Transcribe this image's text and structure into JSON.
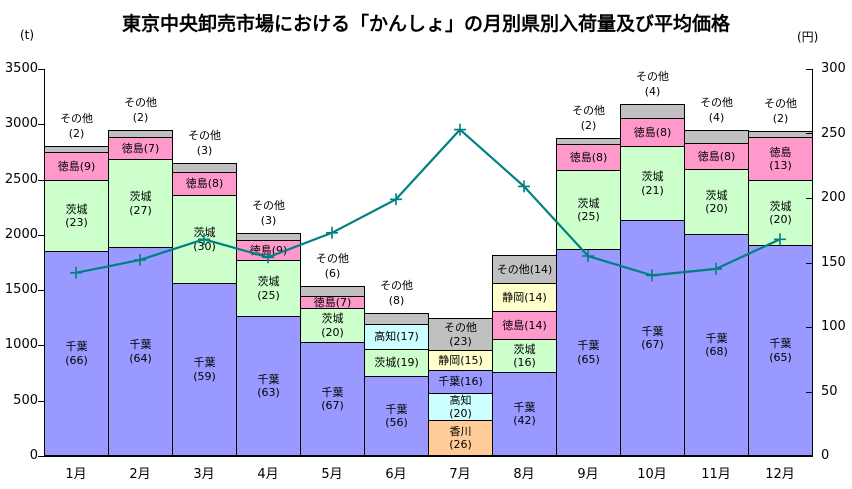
{
  "chart_data": {
    "type": "stacked-bar+line",
    "title": "東京中央卸売市場における「かんしょ」の月別県別入荷量及び平均価格",
    "categories": [
      "1月",
      "2月",
      "3月",
      "4月",
      "5月",
      "6月",
      "7月",
      "8月",
      "9月",
      "10月",
      "11月",
      "12月"
    ],
    "left_axis": {
      "unit": "(t)",
      "min": 0,
      "max": 3500,
      "tick_step": 500,
      "ticks": [
        3500,
        3000,
        2500,
        2000,
        1500,
        1000,
        500,
        0
      ]
    },
    "right_axis": {
      "unit": "(円)",
      "min": 0,
      "max": 300,
      "tick_step": 50,
      "ticks": [
        300,
        250,
        200,
        150,
        100,
        50,
        0
      ]
    },
    "grid": "off",
    "legend": "none",
    "line_series": {
      "name": "平均価格",
      "color": "#008080",
      "marker": "plus",
      "values": [
        142,
        152,
        168,
        154,
        173,
        199,
        253,
        209,
        155,
        140,
        145,
        168
      ]
    },
    "prefecture_colors": {
      "千葉": "#9999FF",
      "茨城": "#CCFFCC",
      "徳島": "#FF99CC",
      "高知": "#CCFFFF",
      "香川": "#FFCC99",
      "静岡": "#FFFFCC",
      "その他": "#C0C0C0"
    },
    "bars": [
      {
        "month": "1月",
        "total_t": 2800,
        "segments": [
          {
            "name": "千葉",
            "pct": 66,
            "lines": 2
          },
          {
            "name": "茨城",
            "pct": 23,
            "lines": 2
          },
          {
            "name": "徳島",
            "pct": 9,
            "lines": 1
          },
          {
            "name": "その他",
            "pct": 2,
            "lines": 2,
            "label_above": true
          }
        ]
      },
      {
        "month": "2月",
        "total_t": 2950,
        "segments": [
          {
            "name": "千葉",
            "pct": 64,
            "lines": 2
          },
          {
            "name": "茨城",
            "pct": 27,
            "lines": 2
          },
          {
            "name": "徳島",
            "pct": 7,
            "lines": 1
          },
          {
            "name": "その他",
            "pct": 2,
            "lines": 2,
            "label_above": true
          }
        ]
      },
      {
        "month": "3月",
        "total_t": 2650,
        "segments": [
          {
            "name": "千葉",
            "pct": 59,
            "lines": 2
          },
          {
            "name": "茨城",
            "pct": 30,
            "lines": 2
          },
          {
            "name": "徳島",
            "pct": 8,
            "lines": 1
          },
          {
            "name": "その他",
            "pct": 3,
            "lines": 2,
            "label_above": true
          }
        ]
      },
      {
        "month": "4月",
        "total_t": 2020,
        "segments": [
          {
            "name": "千葉",
            "pct": 63,
            "lines": 2
          },
          {
            "name": "茨城",
            "pct": 25,
            "lines": 2
          },
          {
            "name": "徳島",
            "pct": 9,
            "lines": 1
          },
          {
            "name": "その他",
            "pct": 3,
            "lines": 2,
            "label_above": true
          }
        ]
      },
      {
        "month": "5月",
        "total_t": 1540,
        "segments": [
          {
            "name": "千葉",
            "pct": 67,
            "lines": 2
          },
          {
            "name": "茨城",
            "pct": 20,
            "lines": 2
          },
          {
            "name": "徳島",
            "pct": 7,
            "lines": 1
          },
          {
            "name": "その他",
            "pct": 6,
            "lines": 2,
            "label_above": true
          }
        ]
      },
      {
        "month": "6月",
        "total_t": 1290,
        "segments": [
          {
            "name": "千葉",
            "pct": 56,
            "lines": 2
          },
          {
            "name": "茨城",
            "pct": 19,
            "lines": 1
          },
          {
            "name": "高知",
            "pct": 17,
            "lines": 1
          },
          {
            "name": "その他",
            "pct": 8,
            "lines": 2,
            "label_above": true
          }
        ]
      },
      {
        "month": "7月",
        "total_t": 1250,
        "segments": [
          {
            "name": "香川",
            "pct": 26,
            "lines": 2
          },
          {
            "name": "高知",
            "pct": 20,
            "lines": 2
          },
          {
            "name": "千葉",
            "pct": 16,
            "lines": 1
          },
          {
            "name": "静岡",
            "pct": 15,
            "lines": 1
          },
          {
            "name": "その他",
            "pct": 23,
            "lines": 2
          }
        ]
      },
      {
        "month": "8月",
        "total_t": 1820,
        "segments": [
          {
            "name": "千葉",
            "pct": 42,
            "lines": 2
          },
          {
            "name": "茨城",
            "pct": 16,
            "lines": 2
          },
          {
            "name": "徳島",
            "pct": 14,
            "lines": 1
          },
          {
            "name": "静岡",
            "pct": 14,
            "lines": 1
          },
          {
            "name": "その他",
            "pct": 14,
            "lines": 1
          }
        ]
      },
      {
        "month": "9月",
        "total_t": 2880,
        "segments": [
          {
            "name": "千葉",
            "pct": 65,
            "lines": 2
          },
          {
            "name": "茨城",
            "pct": 25,
            "lines": 2
          },
          {
            "name": "徳島",
            "pct": 8,
            "lines": 1
          },
          {
            "name": "その他",
            "pct": 2,
            "lines": 2,
            "label_above": true
          }
        ]
      },
      {
        "month": "10月",
        "total_t": 3180,
        "segments": [
          {
            "name": "千葉",
            "pct": 67,
            "lines": 2
          },
          {
            "name": "茨城",
            "pct": 21,
            "lines": 2
          },
          {
            "name": "徳島",
            "pct": 8,
            "lines": 1
          },
          {
            "name": "その他",
            "pct": 4,
            "lines": 2,
            "label_above": true
          }
        ]
      },
      {
        "month": "11月",
        "total_t": 2950,
        "segments": [
          {
            "name": "千葉",
            "pct": 68,
            "lines": 2
          },
          {
            "name": "茨城",
            "pct": 20,
            "lines": 2
          },
          {
            "name": "徳島",
            "pct": 8,
            "lines": 1
          },
          {
            "name": "その他",
            "pct": 4,
            "lines": 2,
            "label_above": true
          }
        ]
      },
      {
        "month": "12月",
        "total_t": 2940,
        "segments": [
          {
            "name": "千葉",
            "pct": 65,
            "lines": 2
          },
          {
            "name": "茨城",
            "pct": 20,
            "lines": 2
          },
          {
            "name": "徳島",
            "pct": 13,
            "lines": 2
          },
          {
            "name": "その他",
            "pct": 2,
            "lines": 2,
            "label_above": true
          }
        ]
      }
    ]
  }
}
